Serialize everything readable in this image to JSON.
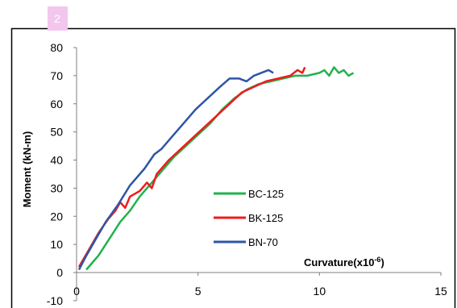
{
  "badge": "2",
  "chart_data": {
    "type": "line",
    "title": "",
    "xlabel_prefix": "Curvature(x10",
    "xlabel_exponent": "-6",
    "xlabel_suffix": ")",
    "ylabel": "Moment (kN-m)",
    "xlim": [
      0,
      15
    ],
    "ylim": [
      -10,
      80
    ],
    "x_ticks": [
      "0",
      "5",
      "10",
      "15"
    ],
    "y_ticks": [
      "-10",
      "0",
      "10",
      "20",
      "30",
      "40",
      "50",
      "60",
      "70",
      "80"
    ],
    "grid": false,
    "legend_position": "bottom-center",
    "series": [
      {
        "name": "BC-125",
        "color": "#22b24c",
        "points": [
          [
            0.4,
            1
          ],
          [
            0.6,
            3
          ],
          [
            0.9,
            6
          ],
          [
            1.2,
            10
          ],
          [
            1.5,
            14
          ],
          [
            1.8,
            18
          ],
          [
            2.2,
            22
          ],
          [
            2.6,
            27
          ],
          [
            3.0,
            31
          ],
          [
            3.5,
            36
          ],
          [
            4.0,
            41
          ],
          [
            4.5,
            45
          ],
          [
            5.0,
            49
          ],
          [
            5.5,
            53
          ],
          [
            6.0,
            58
          ],
          [
            6.5,
            62
          ],
          [
            7.0,
            65
          ],
          [
            7.5,
            67
          ],
          [
            8.0,
            68
          ],
          [
            8.5,
            69
          ],
          [
            9.0,
            70
          ],
          [
            9.5,
            70
          ],
          [
            10.0,
            71
          ],
          [
            10.2,
            72
          ],
          [
            10.4,
            70
          ],
          [
            10.6,
            73
          ],
          [
            10.8,
            71
          ],
          [
            11.0,
            72
          ],
          [
            11.2,
            70
          ],
          [
            11.4,
            71
          ]
        ]
      },
      {
        "name": "BK-125",
        "color": "#ee1c1c",
        "points": [
          [
            0.1,
            2
          ],
          [
            0.5,
            8
          ],
          [
            0.9,
            14
          ],
          [
            1.3,
            19
          ],
          [
            1.6,
            22
          ],
          [
            1.8,
            25
          ],
          [
            2.0,
            23
          ],
          [
            2.2,
            27
          ],
          [
            2.6,
            29
          ],
          [
            2.9,
            32
          ],
          [
            3.1,
            30
          ],
          [
            3.3,
            35
          ],
          [
            3.8,
            40
          ],
          [
            4.3,
            44
          ],
          [
            4.8,
            48
          ],
          [
            5.3,
            52
          ],
          [
            5.8,
            56
          ],
          [
            6.3,
            60
          ],
          [
            6.8,
            64
          ],
          [
            7.3,
            66
          ],
          [
            7.8,
            68
          ],
          [
            8.3,
            69
          ],
          [
            8.8,
            70
          ],
          [
            9.1,
            72
          ],
          [
            9.3,
            71
          ],
          [
            9.4,
            73
          ]
        ]
      },
      {
        "name": "BN-70",
        "color": "#2e55a6",
        "points": [
          [
            0.1,
            1
          ],
          [
            0.4,
            6
          ],
          [
            0.8,
            12
          ],
          [
            1.2,
            18
          ],
          [
            1.7,
            24
          ],
          [
            2.2,
            31
          ],
          [
            2.8,
            37
          ],
          [
            3.2,
            42
          ],
          [
            3.5,
            44
          ],
          [
            3.9,
            48
          ],
          [
            4.4,
            53
          ],
          [
            4.9,
            58
          ],
          [
            5.4,
            62
          ],
          [
            5.9,
            66
          ],
          [
            6.3,
            69
          ],
          [
            6.7,
            69
          ],
          [
            7.0,
            68
          ],
          [
            7.3,
            70
          ],
          [
            7.6,
            71
          ],
          [
            7.9,
            72
          ],
          [
            8.1,
            71
          ]
        ]
      }
    ]
  }
}
